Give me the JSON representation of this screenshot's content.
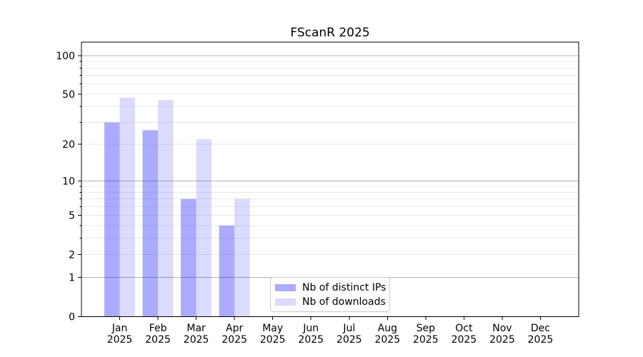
{
  "chart_data": {
    "type": "bar",
    "title": "FScanR 2025",
    "months": [
      "Jan",
      "Feb",
      "Mar",
      "Apr",
      "May",
      "Jun",
      "Jul",
      "Aug",
      "Sep",
      "Oct",
      "Nov",
      "Dec"
    ],
    "year_label": "2025",
    "categories": [
      "Jan 2025",
      "Feb 2025",
      "Mar 2025",
      "Apr 2025",
      "May 2025",
      "Jun 2025",
      "Jul 2025",
      "Aug 2025",
      "Sep 2025",
      "Oct 2025",
      "Nov 2025",
      "Dec 2025"
    ],
    "series": [
      {
        "name": "Nb of distinct IPs",
        "color": "#0000FF54",
        "values": [
          30,
          26,
          7,
          4,
          0,
          0,
          0,
          0,
          0,
          0,
          0,
          0
        ]
      },
      {
        "name": "Nb of downloads",
        "color": "#0000FF24",
        "values": [
          47,
          45,
          22,
          7,
          0,
          0,
          0,
          0,
          0,
          0,
          0,
          0
        ]
      }
    ],
    "xlabel": "",
    "ylabel": "",
    "yscale": "log1p",
    "ylim": [
      0,
      127
    ],
    "y_ticks": [
      0,
      1,
      2,
      5,
      10,
      20,
      50,
      100
    ],
    "grid": {
      "on": true,
      "major_values": [
        1,
        10,
        100
      ],
      "minor_values": [
        2,
        3,
        4,
        5,
        6,
        7,
        8,
        9,
        20,
        30,
        40,
        50,
        60,
        70,
        80,
        90
      ],
      "major_color": "#b0b0b0",
      "minor_color": "#e9e9e9"
    },
    "legend": {
      "position": "lower center"
    },
    "axis_color": "#000000",
    "tick_label_color": "#000000",
    "background_color": "#ffffff"
  }
}
